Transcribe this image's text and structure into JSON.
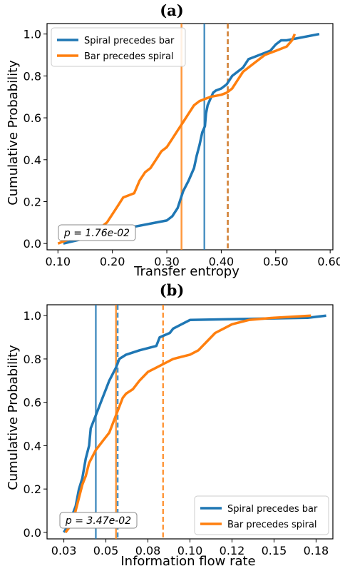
{
  "colors": {
    "spiral": "#1f77b4",
    "bar": "#ff7f0e"
  },
  "chart_data": [
    {
      "type": "line",
      "title": "(a)",
      "xlabel": "Transfer entropy",
      "ylabel": "Cumulative Probability",
      "xlim": [
        0.08,
        0.605
      ],
      "ylim": [
        -0.03,
        1.05
      ],
      "xticks": [
        "0.10",
        "0.20",
        "0.30",
        "0.40",
        "0.50",
        "0.60"
      ],
      "xtick_values": [
        0.1,
        0.2,
        0.3,
        0.4,
        0.5,
        0.6
      ],
      "yticks": [
        "0.0",
        "0.2",
        "0.4",
        "0.6",
        "0.8",
        "1.0"
      ],
      "ytick_values": [
        0,
        0.2,
        0.4,
        0.6,
        0.8,
        1.0
      ],
      "legend_position": "upper-left",
      "annotation": "p = 1.76e-02",
      "series": [
        {
          "name": "Spiral precedes bar",
          "color_key": "spiral",
          "x": [
            0.11,
            0.24,
            0.3,
            0.31,
            0.315,
            0.32,
            0.325,
            0.33,
            0.34,
            0.35,
            0.355,
            0.36,
            0.365,
            0.37,
            0.372,
            0.375,
            0.38,
            0.385,
            0.39,
            0.4,
            0.41,
            0.42,
            0.43,
            0.44,
            0.445,
            0.45,
            0.46,
            0.47,
            0.48,
            0.49,
            0.5,
            0.51,
            0.52,
            0.58
          ],
          "y": [
            0.0,
            0.08,
            0.11,
            0.13,
            0.15,
            0.17,
            0.21,
            0.25,
            0.3,
            0.36,
            0.42,
            0.47,
            0.53,
            0.56,
            0.62,
            0.66,
            0.69,
            0.72,
            0.73,
            0.74,
            0.76,
            0.8,
            0.82,
            0.84,
            0.86,
            0.88,
            0.89,
            0.9,
            0.91,
            0.92,
            0.95,
            0.97,
            0.97,
            1.0
          ]
        },
        {
          "name": "Bar precedes spiral",
          "color_key": "bar",
          "x": [
            0.1,
            0.16,
            0.18,
            0.19,
            0.2,
            0.21,
            0.22,
            0.24,
            0.25,
            0.26,
            0.27,
            0.28,
            0.29,
            0.3,
            0.31,
            0.32,
            0.33,
            0.34,
            0.35,
            0.36,
            0.38,
            0.4,
            0.41,
            0.42,
            0.43,
            0.44,
            0.46,
            0.48,
            0.5,
            0.52,
            0.53,
            0.535
          ],
          "y": [
            0.0,
            0.06,
            0.08,
            0.1,
            0.14,
            0.18,
            0.22,
            0.24,
            0.3,
            0.34,
            0.36,
            0.4,
            0.44,
            0.46,
            0.5,
            0.54,
            0.58,
            0.62,
            0.66,
            0.68,
            0.7,
            0.71,
            0.72,
            0.74,
            0.78,
            0.82,
            0.86,
            0.9,
            0.92,
            0.94,
            0.97,
            1.0
          ]
        }
      ],
      "vlines": [
        {
          "x": 0.327,
          "color_key": "bar",
          "style": "solid"
        },
        {
          "x": 0.369,
          "color_key": "spiral",
          "style": "solid"
        },
        {
          "x": 0.412,
          "color_key": "spiral",
          "style": "dashed"
        },
        {
          "x": 0.412,
          "color_key": "bar",
          "style": "dashed"
        }
      ]
    },
    {
      "type": "line",
      "title": "(b)",
      "xlabel": "Information flow rate",
      "ylabel": "Cumulative Probability",
      "xlim": [
        0.015,
        0.185
      ],
      "ylim": [
        -0.03,
        1.05
      ],
      "xticks": [
        "0.03",
        "0.05",
        "0.08",
        "0.10",
        "0.12",
        "0.15",
        "0.18"
      ],
      "xtick_values": [
        0.025,
        0.05,
        0.075,
        0.1,
        0.125,
        0.15,
        0.175
      ],
      "yticks": [
        "0.0",
        "0.2",
        "0.4",
        "0.6",
        "0.8",
        "1.0"
      ],
      "ytick_values": [
        0,
        0.2,
        0.4,
        0.6,
        0.8,
        1.0
      ],
      "legend_position": "lower-right",
      "annotation": "p = 3.47e-02",
      "series": [
        {
          "name": "Spiral precedes bar",
          "color_key": "spiral",
          "x": [
            0.025,
            0.028,
            0.03,
            0.032,
            0.034,
            0.036,
            0.038,
            0.04,
            0.041,
            0.043,
            0.044,
            0.046,
            0.048,
            0.05,
            0.052,
            0.054,
            0.056,
            0.058,
            0.062,
            0.07,
            0.08,
            0.082,
            0.088,
            0.09,
            0.1,
            0.17,
            0.181
          ],
          "y": [
            0.0,
            0.04,
            0.08,
            0.12,
            0.2,
            0.25,
            0.34,
            0.4,
            0.48,
            0.52,
            0.54,
            0.58,
            0.62,
            0.66,
            0.7,
            0.73,
            0.76,
            0.8,
            0.82,
            0.84,
            0.86,
            0.9,
            0.92,
            0.94,
            0.98,
            0.99,
            1.0
          ]
        },
        {
          "name": "Bar precedes spiral",
          "color_key": "bar",
          "x": [
            0.026,
            0.03,
            0.032,
            0.034,
            0.036,
            0.038,
            0.04,
            0.044,
            0.048,
            0.052,
            0.054,
            0.056,
            0.058,
            0.06,
            0.062,
            0.066,
            0.07,
            0.075,
            0.08,
            0.085,
            0.09,
            0.1,
            0.105,
            0.11,
            0.115,
            0.12,
            0.125,
            0.13,
            0.135,
            0.15,
            0.172
          ],
          "y": [
            0.0,
            0.04,
            0.1,
            0.16,
            0.22,
            0.26,
            0.32,
            0.38,
            0.42,
            0.46,
            0.5,
            0.54,
            0.58,
            0.62,
            0.64,
            0.66,
            0.7,
            0.74,
            0.76,
            0.78,
            0.8,
            0.82,
            0.84,
            0.88,
            0.92,
            0.94,
            0.96,
            0.97,
            0.98,
            0.99,
            1.0
          ]
        }
      ],
      "vlines": [
        {
          "x": 0.044,
          "color_key": "spiral",
          "style": "solid"
        },
        {
          "x": 0.056,
          "color_key": "bar",
          "style": "solid"
        },
        {
          "x": 0.057,
          "color_key": "spiral",
          "style": "dashed"
        },
        {
          "x": 0.084,
          "color_key": "bar",
          "style": "dashed"
        }
      ]
    }
  ]
}
